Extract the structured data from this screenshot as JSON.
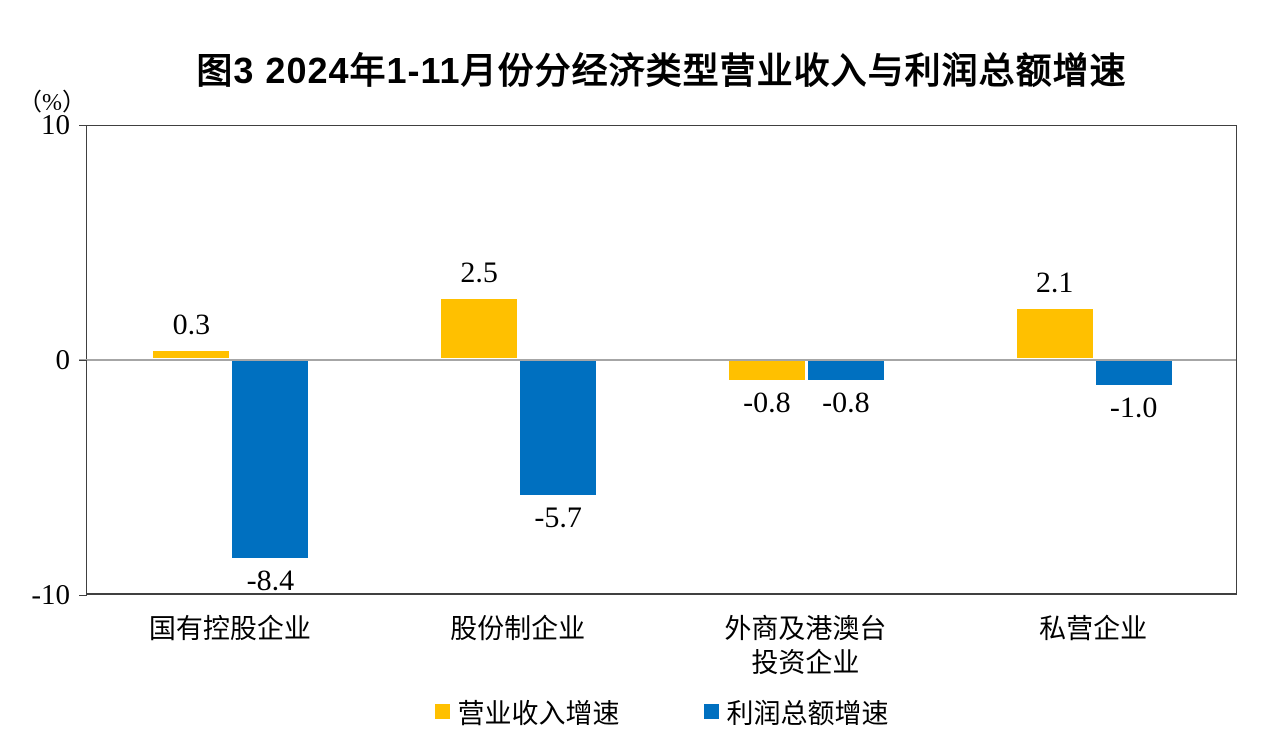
{
  "title": "图3 2024年1-11月份分经济类型营业收入与利润总额增速",
  "unit_label": "（%）",
  "colors": {
    "revenue_yellow": "#FFC000",
    "profit_blue": "#0070C0",
    "axis_border": "#404040",
    "zero_line": "#a6a6a6"
  },
  "y_axis": {
    "ticks": [
      {
        "label": "10",
        "value": 10
      },
      {
        "label": "0",
        "value": 0
      },
      {
        "label": "-10",
        "value": -10
      }
    ]
  },
  "legend": [
    {
      "label": "营业收入增速",
      "color": "#FFC000"
    },
    {
      "label": "利润总额增速",
      "color": "#0070C0"
    }
  ],
  "chart_data": {
    "type": "bar",
    "title": "图3 2024年1-11月份分经济类型营业收入与利润总额增速",
    "unit": "（%）",
    "categories": [
      "国有控股企业",
      "股份制企业",
      "外商及港澳台投资企业",
      "私营企业"
    ],
    "category_lines": [
      [
        "国有控股企业"
      ],
      [
        "股份制企业"
      ],
      [
        "外商及港澳台",
        "投资企业"
      ],
      [
        "私营企业"
      ]
    ],
    "series": [
      {
        "name": "营业收入增速",
        "color": "#FFC000",
        "values": [
          0.3,
          2.5,
          -0.8,
          2.1
        ],
        "labels": [
          "0.3",
          "2.5",
          "-0.8",
          "2.1"
        ]
      },
      {
        "name": "利润总额增速",
        "color": "#0070C0",
        "values": [
          -8.4,
          -5.7,
          -0.8,
          -1.0
        ],
        "labels": [
          "-8.4",
          "-5.7",
          "-0.8",
          "-1.0"
        ]
      }
    ],
    "ylim": [
      -10,
      10
    ],
    "grid": false,
    "legend_position": "bottom"
  }
}
